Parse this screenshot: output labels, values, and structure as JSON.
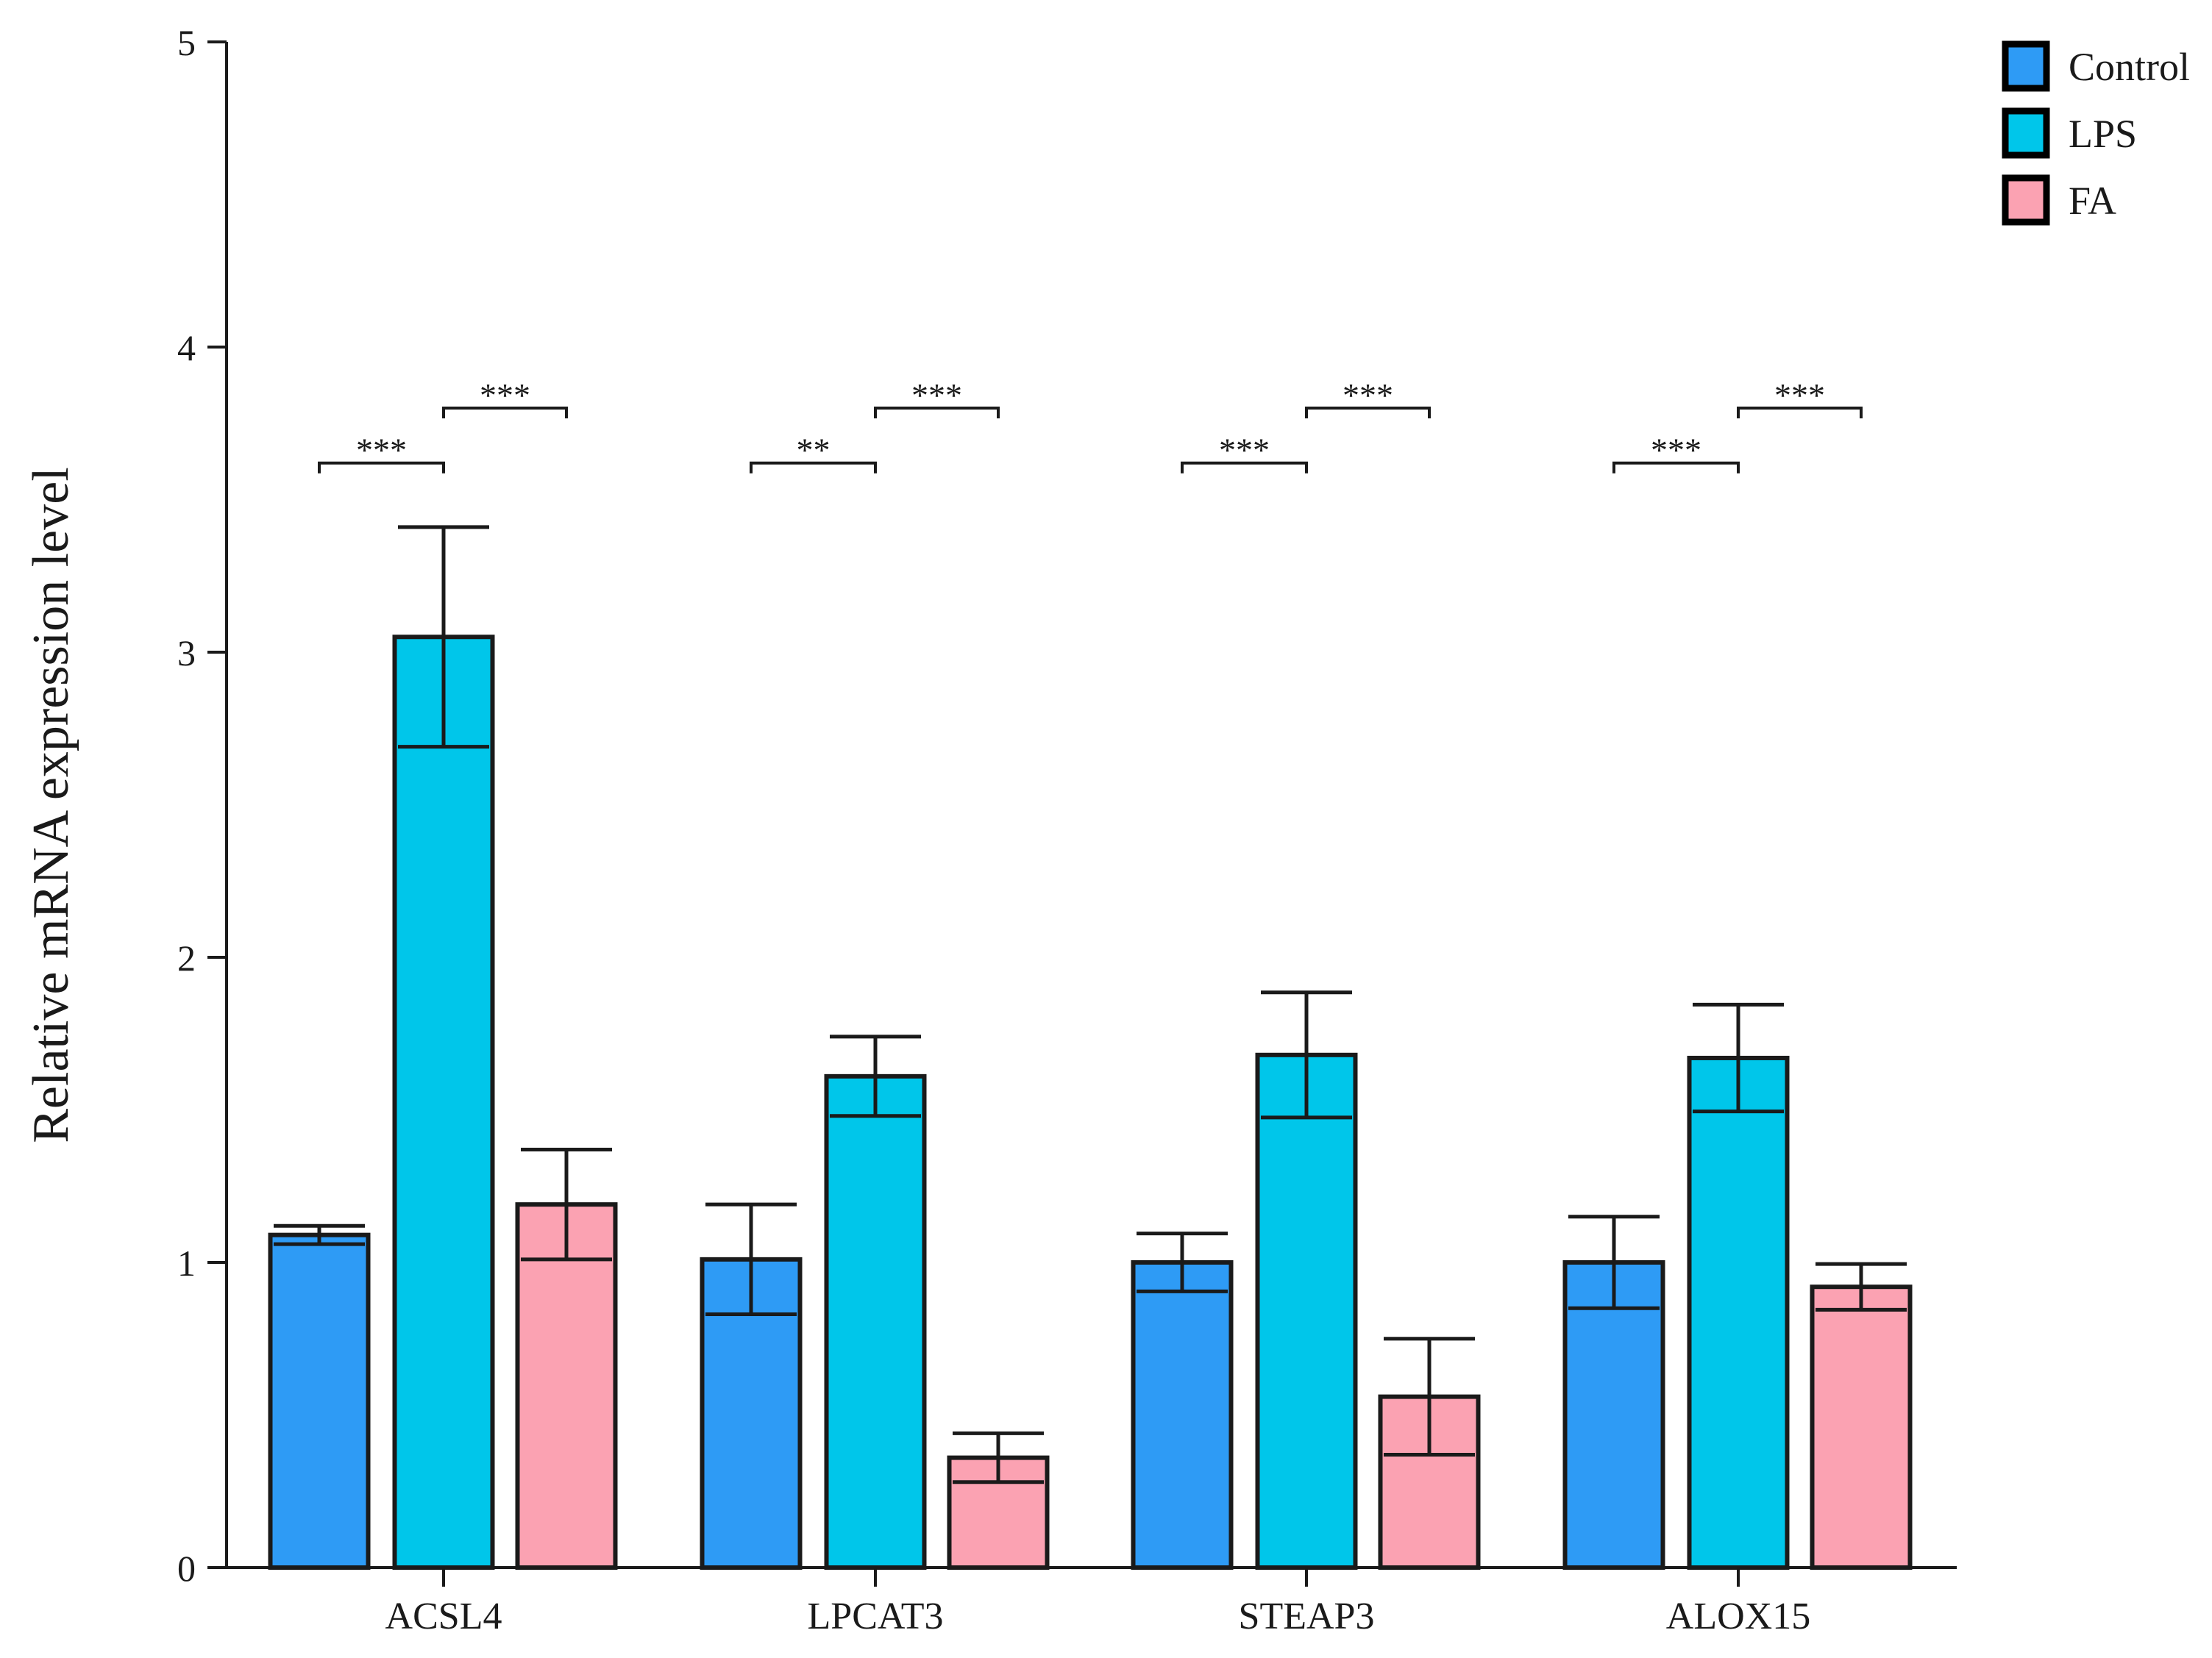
{
  "chart_data": {
    "type": "bar",
    "title": "",
    "xlabel": "",
    "ylabel": "Relative mRNA expression level",
    "ylim": [
      0,
      5
    ],
    "yticks": [
      0,
      1,
      2,
      3,
      4,
      5
    ],
    "categories": [
      "ACSL4",
      "LPCAT3",
      "STEAP3",
      "ALOX15"
    ],
    "series": [
      {
        "name": "Control",
        "color": "#2E9BF5",
        "values": [
          1.09,
          1.01,
          1.0,
          1.0
        ],
        "errors": [
          0.03,
          0.18,
          0.095,
          0.15
        ]
      },
      {
        "name": "LPS",
        "color": "#00C6EA",
        "values": [
          3.05,
          1.61,
          1.68,
          1.67
        ],
        "errors": [
          0.36,
          0.13,
          0.205,
          0.175
        ]
      },
      {
        "name": "FA",
        "color": "#FBA2B2",
        "values": [
          1.19,
          0.36,
          0.56,
          0.92
        ],
        "errors": [
          0.18,
          0.08,
          0.19,
          0.075
        ]
      }
    ],
    "significance": [
      {
        "category": "ACSL4",
        "comparisons": [
          {
            "between": [
              "Control",
              "LPS"
            ],
            "label": "***",
            "y": 3.62
          },
          {
            "between": [
              "LPS",
              "FA"
            ],
            "label": "***",
            "y": 3.8
          }
        ]
      },
      {
        "category": "LPCAT3",
        "comparisons": [
          {
            "between": [
              "Control",
              "LPS"
            ],
            "label": "**",
            "y": 3.62
          },
          {
            "between": [
              "LPS",
              "FA"
            ],
            "label": "***",
            "y": 3.8
          }
        ]
      },
      {
        "category": "STEAP3",
        "comparisons": [
          {
            "between": [
              "Control",
              "LPS"
            ],
            "label": "***",
            "y": 3.62
          },
          {
            "between": [
              "LPS",
              "FA"
            ],
            "label": "***",
            "y": 3.8
          }
        ]
      },
      {
        "category": "ALOX15",
        "comparisons": [
          {
            "between": [
              "Control",
              "LPS"
            ],
            "label": "***",
            "y": 3.62
          },
          {
            "between": [
              "LPS",
              "FA"
            ],
            "label": "***",
            "y": 3.8
          }
        ]
      }
    ],
    "legend": {
      "position": "top-right",
      "entries": [
        "Control",
        "LPS",
        "FA"
      ]
    },
    "grid": false
  }
}
